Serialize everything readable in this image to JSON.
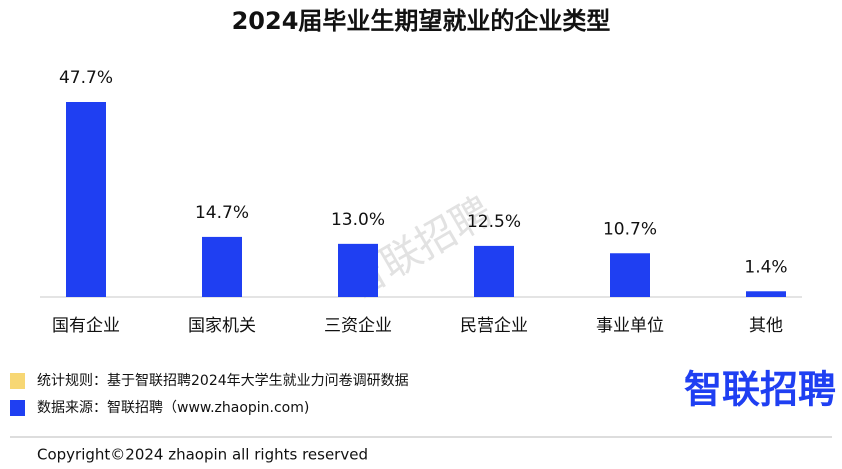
{
  "chart_data": {
    "type": "bar",
    "title": "2024届毕业生期望就业的企业类型",
    "categories": [
      "国有企业",
      "国家机关",
      "三资企业",
      "民营企业",
      "事业单位",
      "其他"
    ],
    "values": [
      47.7,
      14.7,
      13.0,
      12.5,
      10.7,
      1.4
    ],
    "value_labels": [
      "47.7%",
      "14.7%",
      "13.0%",
      "12.5%",
      "10.7%",
      "1.4%"
    ],
    "color": "#1f3ff2",
    "watermark": "智联招聘",
    "notes": [
      {
        "text": "统计规则：基于智联招聘2024年大学生就业力问卷调研数据",
        "color": "#f7d774"
      },
      {
        "text": "数据来源：智联招聘（www.zhaopin.com)",
        "color": "#1f3ff2"
      }
    ],
    "logo": "智联招聘",
    "copyright": "Copyright©2024 zhaopin all rights reserved"
  }
}
